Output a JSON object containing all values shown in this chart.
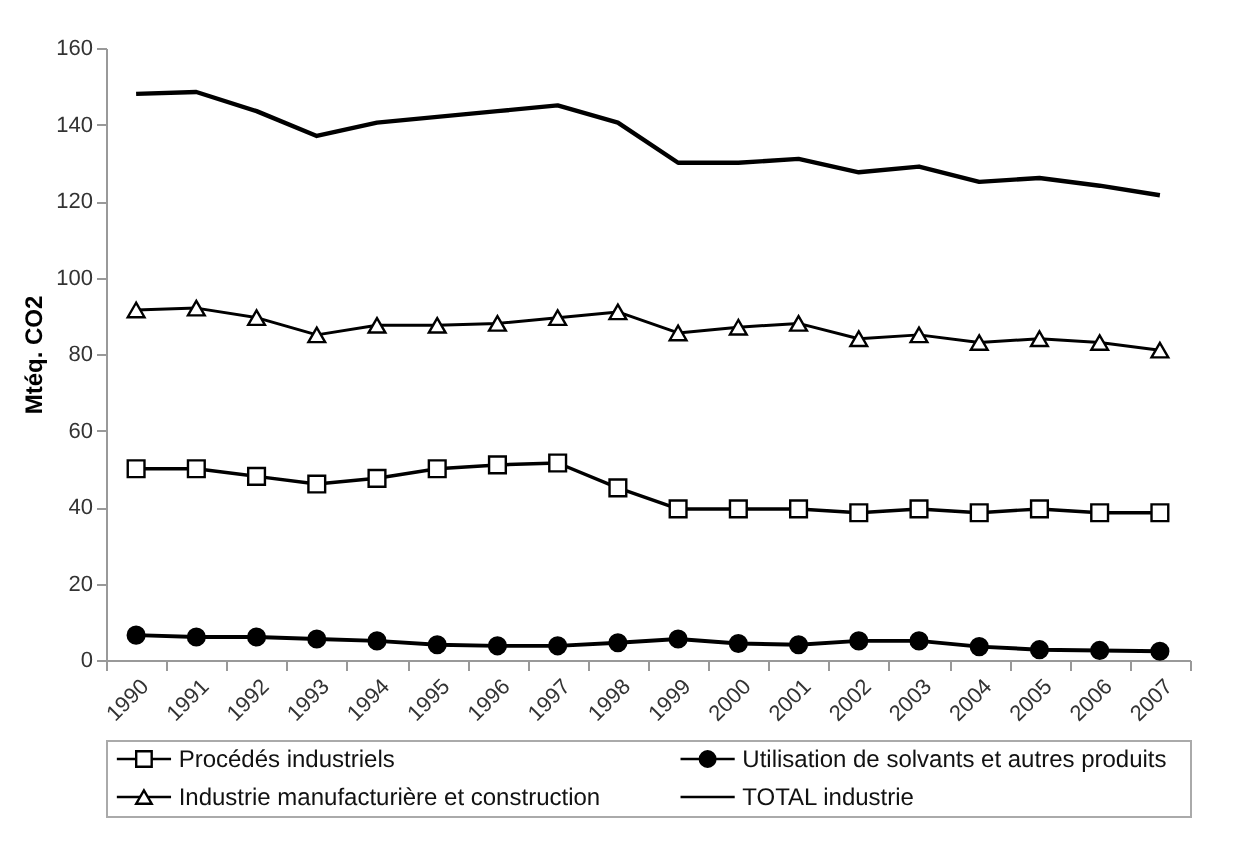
{
  "chart_data": {
    "type": "line",
    "ylabel": "Mtéq. CO2",
    "categories": [
      "1990",
      "1991",
      "1992",
      "1993",
      "1994",
      "1995",
      "1996",
      "1997",
      "1998",
      "1999",
      "2000",
      "2001",
      "2002",
      "2003",
      "2004",
      "2005",
      "2006",
      "2007"
    ],
    "ylim": [
      0,
      160
    ],
    "yticks": [
      0,
      20,
      40,
      60,
      80,
      100,
      120,
      140,
      160
    ],
    "grid": false,
    "legend": "bottom",
    "series": [
      {
        "name": "Procédés industriels",
        "color": "#000000",
        "marker": "square",
        "values": [
          50,
          50,
          48,
          46,
          47.5,
          50,
          51,
          51.5,
          45,
          39.5,
          39.5,
          39.5,
          38.5,
          39.5,
          38.5,
          39.5,
          38.5,
          38.5
        ]
      },
      {
        "name": "Utilisation de solvants et autres produits",
        "color": "#000000",
        "marker": "circle",
        "values": [
          6.5,
          6,
          6,
          5.5,
          5,
          4,
          3.7,
          3.7,
          4.5,
          5.5,
          4.3,
          4,
          5,
          5,
          3.5,
          2.7,
          2.5,
          2.3
        ]
      },
      {
        "name": "Industrie manufacturière et construction",
        "color": "#000000",
        "marker": "triangle",
        "values": [
          91.5,
          92,
          89.5,
          85,
          87.5,
          87.5,
          88,
          89.5,
          91,
          85.5,
          87,
          88,
          84,
          85,
          83,
          84,
          83,
          81
        ]
      },
      {
        "name": "TOTAL industrie",
        "color": "#000000",
        "marker": "none",
        "values": [
          148,
          148.5,
          143.5,
          137,
          140.5,
          142,
          143.5,
          145,
          140.5,
          130,
          130,
          131,
          127.5,
          129,
          125,
          126,
          124,
          121.5
        ]
      }
    ]
  }
}
